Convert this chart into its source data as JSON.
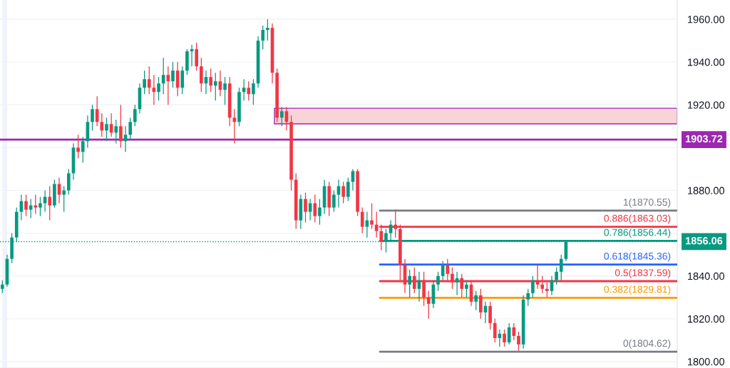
{
  "chart_data": {
    "type": "candlestick",
    "categories": [
      null,
      null,
      null,
      null,
      null,
      null,
      null,
      null,
      null,
      null,
      null,
      null,
      null,
      null,
      null,
      null,
      null,
      null,
      null,
      null,
      null,
      null,
      null,
      null,
      null,
      null,
      null,
      null,
      null,
      null,
      null,
      null,
      null,
      null,
      null,
      null,
      null,
      null,
      null,
      null,
      null,
      null,
      null,
      null,
      null,
      null,
      null,
      null,
      null,
      null,
      null,
      null,
      null,
      null,
      null,
      null,
      null,
      null,
      null,
      null,
      null,
      null,
      null,
      null,
      null,
      null,
      null,
      null,
      null,
      null,
      null,
      null,
      null,
      null,
      null,
      null,
      null,
      null,
      null,
      null,
      null,
      null,
      null,
      null,
      null,
      null,
      null,
      null,
      null,
      null,
      null,
      null,
      null,
      null,
      null,
      null,
      null,
      null,
      null,
      null,
      null,
      null,
      null,
      null,
      null,
      null,
      null,
      null,
      null,
      null,
      null,
      null,
      null,
      null,
      null,
      null,
      null,
      null,
      null,
      null,
      null,
      null,
      null,
      null,
      null,
      null,
      null,
      null,
      null,
      null,
      null,
      null,
      null,
      null,
      null,
      null,
      null,
      null,
      null,
      null,
      null,
      null,
      null
    ],
    "ohlc": [
      [
        1834,
        1838,
        1832,
        1836
      ],
      [
        1836,
        1850,
        1835,
        1848
      ],
      [
        1848,
        1860,
        1846,
        1858
      ],
      [
        1858,
        1872,
        1856,
        1870
      ],
      [
        1870,
        1878,
        1866,
        1875
      ],
      [
        1875,
        1878,
        1868,
        1871
      ],
      [
        1871,
        1876,
        1867,
        1873
      ],
      [
        1873,
        1878,
        1869,
        1872
      ],
      [
        1872,
        1877,
        1868,
        1874
      ],
      [
        1874,
        1880,
        1870,
        1877
      ],
      [
        1877,
        1882,
        1866,
        1873
      ],
      [
        1873,
        1885,
        1872,
        1883
      ],
      [
        1883,
        1886,
        1874,
        1878
      ],
      [
        1878,
        1882,
        1870,
        1880
      ],
      [
        1880,
        1890,
        1878,
        1888
      ],
      [
        1888,
        1902,
        1885,
        1900
      ],
      [
        1900,
        1906,
        1895,
        1898
      ],
      [
        1898,
        1905,
        1893,
        1903
      ],
      [
        1903,
        1915,
        1900,
        1912
      ],
      [
        1912,
        1920,
        1908,
        1918
      ],
      [
        1918,
        1924,
        1910,
        1912
      ],
      [
        1912,
        1916,
        1905,
        1908
      ],
      [
        1908,
        1914,
        1903,
        1911
      ],
      [
        1911,
        1916,
        1905,
        1907
      ],
      [
        1907,
        1913,
        1902,
        1910
      ],
      [
        1910,
        1920,
        1900,
        1903
      ],
      [
        1903,
        1910,
        1898,
        1906
      ],
      [
        1906,
        1914,
        1904,
        1912
      ],
      [
        1912,
        1920,
        1910,
        1918
      ],
      [
        1918,
        1930,
        1916,
        1928
      ],
      [
        1928,
        1936,
        1925,
        1932
      ],
      [
        1932,
        1938,
        1925,
        1928
      ],
      [
        1928,
        1934,
        1920,
        1926
      ],
      [
        1926,
        1933,
        1922,
        1930
      ],
      [
        1930,
        1942,
        1925,
        1934
      ],
      [
        1934,
        1938,
        1920,
        1931
      ],
      [
        1931,
        1940,
        1928,
        1936
      ],
      [
        1936,
        1940,
        1924,
        1928
      ],
      [
        1928,
        1938,
        1925,
        1936
      ],
      [
        1936,
        1946,
        1934,
        1945
      ],
      [
        1945,
        1948,
        1938,
        1946
      ],
      [
        1946,
        1949,
        1936,
        1938
      ],
      [
        1938,
        1942,
        1926,
        1930
      ],
      [
        1930,
        1936,
        1925,
        1933
      ],
      [
        1933,
        1937,
        1926,
        1929
      ],
      [
        1929,
        1935,
        1922,
        1931
      ],
      [
        1931,
        1936,
        1924,
        1927
      ],
      [
        1927,
        1933,
        1920,
        1930
      ],
      [
        1930,
        1933,
        1910,
        1914
      ],
      [
        1914,
        1918,
        1902,
        1912
      ],
      [
        1912,
        1928,
        1910,
        1926
      ],
      [
        1926,
        1932,
        1922,
        1928
      ],
      [
        1928,
        1931,
        1922,
        1925
      ],
      [
        1925,
        1932,
        1920,
        1930
      ],
      [
        1930,
        1952,
        1928,
        1950
      ],
      [
        1950,
        1957,
        1946,
        1955
      ],
      [
        1955,
        1960,
        1950,
        1956
      ],
      [
        1956,
        1958,
        1930,
        1935
      ],
      [
        1935,
        1937,
        1912,
        1914
      ],
      [
        1914,
        1919,
        1910,
        1917
      ],
      [
        1917,
        1919,
        1908,
        1912
      ],
      [
        1912,
        1915,
        1880,
        1885
      ],
      [
        1885,
        1888,
        1862,
        1866
      ],
      [
        1866,
        1878,
        1862,
        1876
      ],
      [
        1876,
        1879,
        1865,
        1870
      ],
      [
        1870,
        1876,
        1866,
        1874
      ],
      [
        1874,
        1878,
        1865,
        1868
      ],
      [
        1868,
        1876,
        1864,
        1872
      ],
      [
        1872,
        1885,
        1869,
        1882
      ],
      [
        1882,
        1884,
        1868,
        1872
      ],
      [
        1872,
        1880,
        1870,
        1878
      ],
      [
        1878,
        1885,
        1872,
        1882
      ],
      [
        1882,
        1884,
        1874,
        1877
      ],
      [
        1877,
        1886,
        1875,
        1884
      ],
      [
        1884,
        1890,
        1880,
        1889
      ],
      [
        1889,
        1890,
        1868,
        1870
      ],
      [
        1870,
        1872,
        1860,
        1863
      ],
      [
        1863,
        1870,
        1858,
        1866
      ],
      [
        1866,
        1874,
        1862,
        1864
      ],
      [
        1864,
        1870,
        1858,
        1861
      ],
      [
        1861,
        1864,
        1852,
        1856
      ],
      [
        1856,
        1862,
        1851,
        1860
      ],
      [
        1860,
        1866,
        1856,
        1864
      ],
      [
        1864,
        1871,
        1858,
        1862
      ],
      [
        1862,
        1864,
        1838,
        1845
      ],
      [
        1845,
        1848,
        1832,
        1836
      ],
      [
        1836,
        1843,
        1830,
        1840
      ],
      [
        1840,
        1844,
        1832,
        1834
      ],
      [
        1834,
        1842,
        1828,
        1838
      ],
      [
        1838,
        1842,
        1826,
        1830
      ],
      [
        1830,
        1833,
        1820,
        1827
      ],
      [
        1827,
        1838,
        1825,
        1836
      ],
      [
        1836,
        1842,
        1833,
        1840
      ],
      [
        1840,
        1847,
        1838,
        1845
      ],
      [
        1845,
        1848,
        1838,
        1841
      ],
      [
        1841,
        1844,
        1834,
        1837
      ],
      [
        1837,
        1842,
        1831,
        1839
      ],
      [
        1839,
        1841,
        1830,
        1834
      ],
      [
        1834,
        1838,
        1830,
        1836
      ],
      [
        1836,
        1838,
        1826,
        1828
      ],
      [
        1828,
        1833,
        1824,
        1831
      ],
      [
        1831,
        1834,
        1820,
        1823
      ],
      [
        1823,
        1828,
        1818,
        1826
      ],
      [
        1826,
        1828,
        1815,
        1818
      ],
      [
        1818,
        1820,
        1809,
        1811
      ],
      [
        1811,
        1815,
        1807,
        1813
      ],
      [
        1813,
        1815,
        1807,
        1809
      ],
      [
        1809,
        1818,
        1808,
        1816
      ],
      [
        1816,
        1818,
        1810,
        1812
      ],
      [
        1812,
        1814,
        1805,
        1808
      ],
      [
        1808,
        1831,
        1806,
        1829
      ],
      [
        1829,
        1834,
        1826,
        1832
      ],
      [
        1832,
        1840,
        1830,
        1838
      ],
      [
        1838,
        1845,
        1834,
        1836
      ],
      [
        1836,
        1840,
        1832,
        1834
      ],
      [
        1834,
        1837,
        1830,
        1833
      ],
      [
        1833,
        1840,
        1831,
        1838
      ],
      [
        1838,
        1844,
        1836,
        1842
      ],
      [
        1842,
        1850,
        1838,
        1848
      ],
      [
        1848,
        1856.06,
        1847,
        1856.06
      ],
      null,
      null,
      null,
      null,
      null,
      null,
      null,
      null,
      null,
      null,
      null,
      null,
      null,
      null,
      null,
      null,
      null,
      null,
      null,
      null,
      null,
      null,
      null
    ],
    "colors": [
      "#089981",
      "#089981",
      "#089981",
      "#089981",
      "#089981",
      "#f23645",
      "#089981",
      "#f23645",
      "#089981",
      "#089981",
      "#f23645",
      "#089981",
      "#f23645",
      "#089981",
      "#089981",
      "#089981",
      "#f23645",
      "#089981",
      "#089981",
      "#089981",
      "#f23645",
      "#f23645",
      "#089981",
      "#f23645",
      "#089981",
      "#f23645",
      "#089981",
      "#089981",
      "#089981",
      "#089981",
      "#089981",
      "#f23645",
      "#f23645",
      "#089981",
      "#089981",
      "#f23645",
      "#089981",
      "#f23645",
      "#089981",
      "#089981",
      "#089981",
      "#f23645",
      "#f23645",
      "#089981",
      "#f23645",
      "#089981",
      "#f23645",
      "#089981",
      "#f23645",
      "#f23645",
      "#089981",
      "#089981",
      "#f23645",
      "#089981",
      "#089981",
      "#089981",
      "#089981",
      "#f23645",
      "#f23645",
      "#089981",
      "#f23645",
      "#f23645",
      "#f23645",
      "#089981",
      "#f23645",
      "#089981",
      "#f23645",
      "#089981",
      "#089981",
      "#f23645",
      "#089981",
      "#089981",
      "#f23645",
      "#089981",
      "#089981",
      "#f23645",
      "#f23645",
      "#089981",
      "#f23645",
      "#f23645",
      "#f23645",
      "#089981",
      "#089981",
      "#f23645",
      "#f23645",
      "#f23645",
      "#089981",
      "#f23645",
      "#089981",
      "#f23645",
      "#f23645",
      "#089981",
      "#089981",
      "#089981",
      "#f23645",
      "#f23645",
      "#089981",
      "#f23645",
      "#089981",
      "#f23645",
      "#089981",
      "#f23645",
      "#089981",
      "#f23645",
      "#f23645",
      "#089981",
      "#f23645",
      "#089981",
      "#f23645",
      "#f23645",
      "#089981",
      "#089981",
      "#089981",
      "#f23645",
      "#f23645",
      "#f23645",
      "#089981",
      "#089981",
      "#089981",
      "#089981",
      null,
      null,
      null,
      null,
      null,
      null,
      null,
      null,
      null,
      null,
      null,
      null,
      null,
      null,
      null,
      null,
      null,
      null,
      null,
      null,
      null,
      null,
      null
    ],
    "ylim": [
      1797,
      1969
    ],
    "yticks": [
      {
        "value": 1800,
        "label": "1800.00"
      },
      {
        "value": 1820,
        "label": "1820.00"
      },
      {
        "value": 1840,
        "label": "1840.00"
      },
      {
        "value": 1860,
        "label": null
      },
      {
        "value": 1880,
        "label": "1880.00"
      },
      {
        "value": 1900,
        "label": null
      },
      {
        "value": 1920,
        "label": "1920.00"
      },
      {
        "value": 1940,
        "label": "1940.00"
      },
      {
        "value": 1960,
        "label": "1960.00"
      }
    ],
    "ref_lines": [
      {
        "axis": "y",
        "value": 1903.72,
        "label": "1903.72",
        "color": "#9c27b0",
        "line_style": "solid"
      },
      {
        "axis": "y",
        "value": 1856.06,
        "label": "1856.06",
        "color": "#089981",
        "line_style": "dotted"
      },
      {
        "axis": "y",
        "value": 1870.55,
        "label": "1(1870.55)",
        "color": "#787b86",
        "line_style": "solid"
      },
      {
        "axis": "y",
        "value": 1863.03,
        "label": "0.886(1863.03)",
        "color": "#f23645",
        "line_style": "solid"
      },
      {
        "axis": "y",
        "value": 1856.44,
        "label": "0.786(1856.44)",
        "color": "#089981",
        "line_style": "solid"
      },
      {
        "axis": "y",
        "value": 1845.36,
        "label": "0.618(1845.36)",
        "color": "#2962ff",
        "line_style": "solid"
      },
      {
        "axis": "y",
        "value": 1837.59,
        "label": "0.5(1837.59)",
        "color": "#f23645",
        "line_style": "solid"
      },
      {
        "axis": "y",
        "value": 1829.81,
        "label": "0.382(1829.81)",
        "color": "#ff9800",
        "line_style": "solid"
      },
      {
        "axis": "y",
        "value": 1804.62,
        "label": "0(1804.62)",
        "color": "#787b86",
        "line_style": "solid"
      }
    ],
    "bands": [
      {
        "axis": "y",
        "from": 1911.1,
        "to": 1918.4,
        "color": "#f8d3d7"
      }
    ],
    "grid": true,
    "tick_labels": "y",
    "legend": false
  }
}
